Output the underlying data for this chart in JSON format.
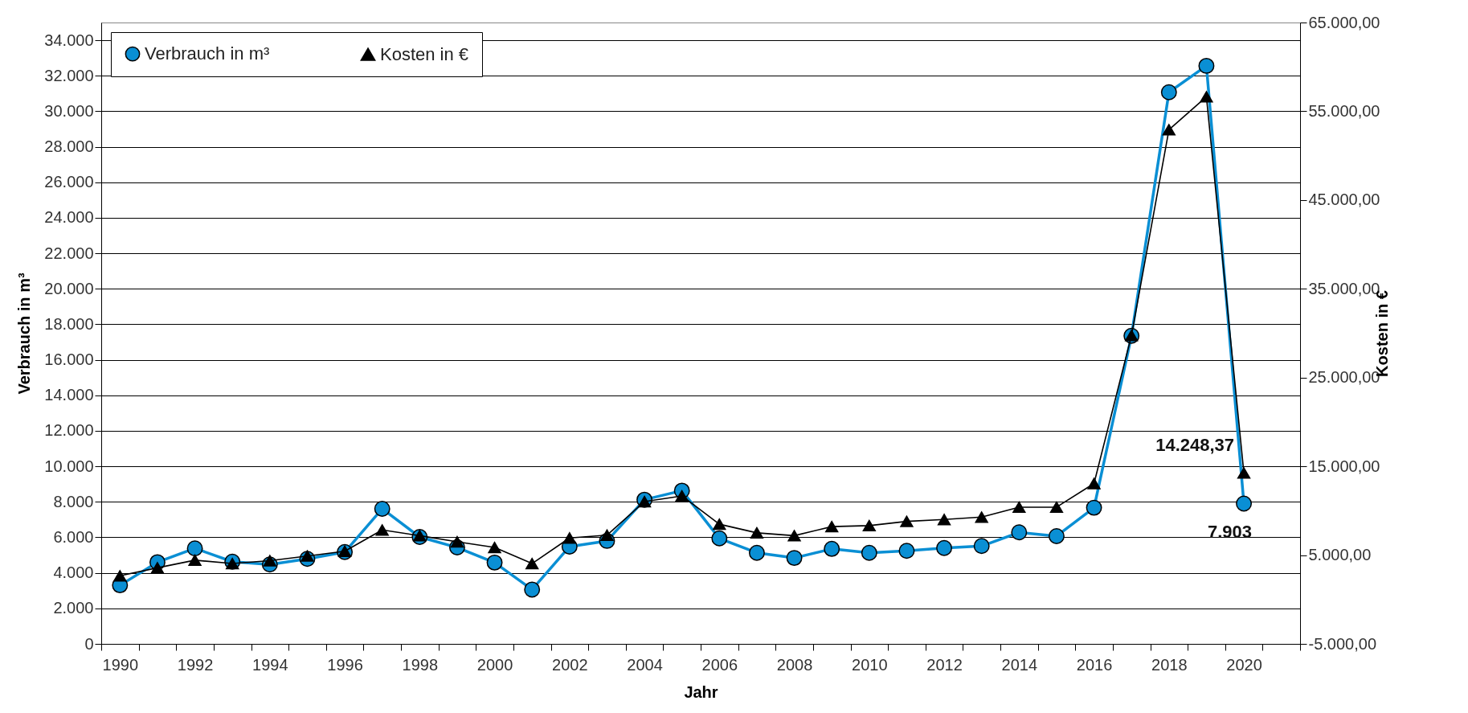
{
  "chart_data": {
    "type": "line",
    "xlabel": "Jahr",
    "ylabel": "Verbrauch in m³",
    "y2label": "Kosten in €",
    "categories": [
      "1990",
      null,
      "1992",
      null,
      "1994",
      null,
      "1996",
      null,
      "1998",
      null,
      "2000",
      null,
      "2002",
      null,
      "2004",
      null,
      "2006",
      null,
      "2008",
      null,
      "2010",
      null,
      "2012",
      null,
      "2014",
      null,
      "2016",
      null,
      "2018",
      null,
      "2020",
      null
    ],
    "series": [
      {
        "name": "Verbrauch in m³",
        "color": "#0a8fd4",
        "marker": "circle",
        "values": [
          3300,
          4600,
          5380,
          4630,
          4470,
          4790,
          5170,
          7610,
          6020,
          5430,
          4580,
          3060,
          5480,
          5800,
          8120,
          8630,
          5940,
          5130,
          4840,
          5350,
          5130,
          5240,
          5400,
          5510,
          6280,
          6070,
          7670,
          17350,
          31070,
          32560,
          7903,
          null
        ],
        "value_labels": [
          null,
          null,
          null,
          null,
          null,
          null,
          null,
          null,
          null,
          null,
          null,
          null,
          null,
          null,
          null,
          null,
          null,
          null,
          null,
          null,
          null,
          null,
          null,
          null,
          null,
          null,
          null,
          null,
          null,
          null,
          "7.903",
          null
        ]
      },
      {
        "name": "Kosten in €",
        "color": "#000000",
        "marker": "triangle",
        "axis": "y2",
        "values": [
          2670,
          3570,
          4430,
          4050,
          4370,
          4900,
          5440,
          7830,
          7190,
          6500,
          5860,
          4050,
          6930,
          7250,
          11030,
          11670,
          8480,
          7510,
          7190,
          8210,
          8320,
          8800,
          9010,
          9280,
          10400,
          10400,
          13070,
          29750,
          52920,
          56630,
          14248.37,
          null
        ],
        "value_labels": [
          null,
          null,
          null,
          null,
          null,
          null,
          null,
          null,
          null,
          null,
          null,
          null,
          null,
          null,
          null,
          null,
          null,
          null,
          null,
          null,
          null,
          null,
          null,
          null,
          null,
          null,
          null,
          null,
          null,
          null,
          "14.248,37",
          null
        ]
      }
    ],
    "ylim": [
      0,
      35000
    ],
    "yticks": [
      {
        "value": 0,
        "label": "0"
      },
      {
        "value": 2000,
        "label": "2.000"
      },
      {
        "value": 4000,
        "label": "4.000"
      },
      {
        "value": 6000,
        "label": "6.000"
      },
      {
        "value": 8000,
        "label": "8.000"
      },
      {
        "value": 10000,
        "label": "10.000"
      },
      {
        "value": 12000,
        "label": "12.000"
      },
      {
        "value": 14000,
        "label": "14.000"
      },
      {
        "value": 16000,
        "label": "16.000"
      },
      {
        "value": 18000,
        "label": "18.000"
      },
      {
        "value": 20000,
        "label": "20.000"
      },
      {
        "value": 22000,
        "label": "22.000"
      },
      {
        "value": 24000,
        "label": "24.000"
      },
      {
        "value": 26000,
        "label": "26.000"
      },
      {
        "value": 28000,
        "label": "28.000"
      },
      {
        "value": 30000,
        "label": "30.000"
      },
      {
        "value": 32000,
        "label": "32.000"
      },
      {
        "value": 34000,
        "label": "34.000"
      }
    ],
    "y2lim": [
      -5000,
      65000
    ],
    "y2ticks": [
      {
        "value": -5000,
        "label": "-5.000,00"
      },
      {
        "value": 5000,
        "label": "5.000,00"
      },
      {
        "value": 15000,
        "label": "15.000,00"
      },
      {
        "value": 25000,
        "label": "25.000,00"
      },
      {
        "value": 35000,
        "label": "35.000,00"
      },
      {
        "value": 45000,
        "label": "45.000,00"
      },
      {
        "value": 55000,
        "label": "55.000,00"
      },
      {
        "value": 65000,
        "label": "65.000,00"
      }
    ],
    "grid": "y",
    "legend": "top left",
    "line_style": "solid"
  }
}
